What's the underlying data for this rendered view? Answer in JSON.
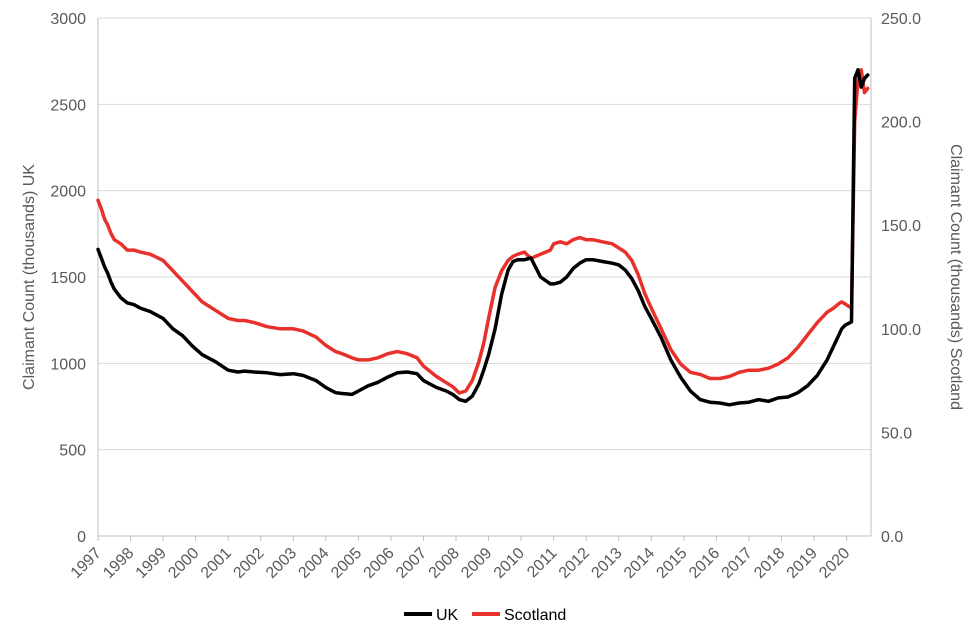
{
  "chart_data": {
    "type": "line",
    "ylabel_left": "Claimant Count (thousands) UK",
    "ylabel_right": "Claimant Count (thousands) Scotland",
    "ylim_left": [
      0,
      3000
    ],
    "ylim_right": [
      0,
      250
    ],
    "yticks_left": [
      "0",
      "500",
      "1000",
      "1500",
      "2000",
      "2500",
      "3000"
    ],
    "yticks_right": [
      "0.0",
      "50.0",
      "100.0",
      "150.0",
      "200.0",
      "250.0"
    ],
    "xticks": [
      "1997",
      "1998",
      "1999",
      "2000",
      "2001",
      "2002",
      "2003",
      "2004",
      "2005",
      "2006",
      "2007",
      "2008",
      "2009",
      "2010",
      "2011",
      "2012",
      "2013",
      "2014",
      "2015",
      "2016",
      "2017",
      "2018",
      "2019",
      "2020"
    ],
    "xlim": [
      1997.0,
      2020.75
    ],
    "grid": true,
    "legend_position": "bottom",
    "series": [
      {
        "name": "UK",
        "axis": "left",
        "color": "#000000",
        "x": [
          1997.0,
          1997.1,
          1997.2,
          1997.3,
          1997.4,
          1997.5,
          1997.7,
          1997.9,
          1998.1,
          1998.3,
          1998.6,
          1999.0,
          1999.3,
          1999.6,
          1999.9,
          2000.2,
          2000.6,
          2001.0,
          2001.3,
          2001.5,
          2001.8,
          2002.2,
          2002.6,
          2003.0,
          2003.3,
          2003.7,
          2004.0,
          2004.3,
          2004.5,
          2004.8,
          2005.0,
          2005.3,
          2005.6,
          2005.9,
          2006.2,
          2006.5,
          2006.8,
          2007.0,
          2007.4,
          2007.7,
          2007.9,
          2008.1,
          2008.3,
          2008.5,
          2008.7,
          2008.85,
          2009.0,
          2009.2,
          2009.4,
          2009.6,
          2009.75,
          2009.9,
          2010.1,
          2010.3,
          2010.6,
          2010.9,
          2011.0,
          2011.2,
          2011.4,
          2011.6,
          2011.8,
          2012.0,
          2012.2,
          2012.5,
          2012.8,
          2013.0,
          2013.2,
          2013.4,
          2013.6,
          2013.8,
          2014.0,
          2014.3,
          2014.6,
          2014.9,
          2015.2,
          2015.5,
          2015.8,
          2016.1,
          2016.4,
          2016.7,
          2017.0,
          2017.3,
          2017.6,
          2017.9,
          2018.2,
          2018.5,
          2018.8,
          2019.1,
          2019.4,
          2019.6,
          2019.75,
          2019.85,
          2019.95,
          2020.05,
          2020.15,
          2020.25,
          2020.35,
          2020.45,
          2020.55,
          2020.65
        ],
        "values": [
          1660,
          1610,
          1560,
          1520,
          1470,
          1430,
          1380,
          1350,
          1340,
          1320,
          1300,
          1260,
          1200,
          1160,
          1100,
          1050,
          1010,
          960,
          950,
          955,
          950,
          945,
          935,
          940,
          930,
          900,
          860,
          830,
          825,
          820,
          840,
          870,
          890,
          920,
          945,
          950,
          940,
          900,
          860,
          840,
          820,
          790,
          780,
          810,
          880,
          960,
          1050,
          1200,
          1400,
          1540,
          1590,
          1600,
          1600,
          1610,
          1500,
          1460,
          1460,
          1470,
          1500,
          1550,
          1580,
          1600,
          1600,
          1590,
          1580,
          1570,
          1540,
          1490,
          1420,
          1330,
          1260,
          1150,
          1020,
          920,
          840,
          790,
          775,
          770,
          760,
          770,
          775,
          790,
          780,
          800,
          805,
          830,
          870,
          930,
          1020,
          1100,
          1160,
          1200,
          1220,
          1230,
          1240,
          2650,
          2700,
          2600,
          2650,
          2670
        ]
      },
      {
        "name": "Scotland",
        "axis": "right",
        "color": "#e8312a",
        "x": [
          1997.0,
          1997.1,
          1997.2,
          1997.3,
          1997.4,
          1997.5,
          1997.7,
          1997.9,
          1998.1,
          1998.3,
          1998.6,
          1999.0,
          1999.3,
          1999.6,
          1999.9,
          2000.2,
          2000.6,
          2001.0,
          2001.3,
          2001.5,
          2001.8,
          2002.2,
          2002.6,
          2003.0,
          2003.3,
          2003.7,
          2004.0,
          2004.3,
          2004.5,
          2004.8,
          2005.0,
          2005.3,
          2005.6,
          2005.9,
          2006.2,
          2006.5,
          2006.8,
          2007.0,
          2007.4,
          2007.7,
          2007.9,
          2008.1,
          2008.3,
          2008.5,
          2008.7,
          2008.85,
          2009.0,
          2009.2,
          2009.4,
          2009.6,
          2009.75,
          2009.9,
          2010.1,
          2010.3,
          2010.6,
          2010.9,
          2011.0,
          2011.2,
          2011.4,
          2011.6,
          2011.8,
          2012.0,
          2012.2,
          2012.5,
          2012.8,
          2013.0,
          2013.2,
          2013.4,
          2013.6,
          2013.8,
          2014.0,
          2014.3,
          2014.6,
          2014.9,
          2015.2,
          2015.5,
          2015.8,
          2016.1,
          2016.4,
          2016.7,
          2017.0,
          2017.3,
          2017.6,
          2017.9,
          2018.2,
          2018.5,
          2018.8,
          2019.1,
          2019.4,
          2019.6,
          2019.75,
          2019.85,
          2019.95,
          2020.05,
          2020.15,
          2020.25,
          2020.35,
          2020.45,
          2020.55,
          2020.65
        ],
        "values": [
          162.0,
          158.0,
          153.0,
          150.0,
          146.0,
          143.0,
          141.0,
          138.0,
          138.0,
          137.0,
          136.0,
          133.0,
          128.0,
          123.0,
          118.0,
          113.0,
          109.0,
          105.0,
          104.0,
          104.0,
          103.0,
          101.0,
          100.0,
          100.0,
          99.0,
          96.0,
          92.0,
          89.0,
          88.0,
          86.0,
          85.0,
          85.0,
          86.0,
          88.0,
          89.0,
          88.0,
          86.0,
          82.0,
          77.0,
          74.0,
          72.0,
          69.0,
          70.0,
          75.0,
          84.0,
          93.0,
          105.0,
          120.0,
          128.0,
          133.0,
          135.0,
          136.0,
          137.0,
          134.0,
          136.0,
          138.0,
          141.0,
          142.0,
          141.0,
          143.0,
          144.0,
          143.0,
          143.0,
          142.0,
          141.0,
          139.0,
          137.0,
          133.0,
          126.0,
          117.0,
          110.0,
          100.0,
          90.0,
          83.0,
          79.0,
          78.0,
          76.0,
          76.0,
          77.0,
          79.0,
          80.0,
          80.0,
          81.0,
          83.0,
          86.0,
          91.0,
          97.0,
          103.0,
          108.0,
          110.0,
          112.0,
          113.0,
          112.0,
          111.0,
          110.0,
          200.0,
          220.0,
          225.0,
          214.0,
          216.0
        ]
      }
    ]
  }
}
